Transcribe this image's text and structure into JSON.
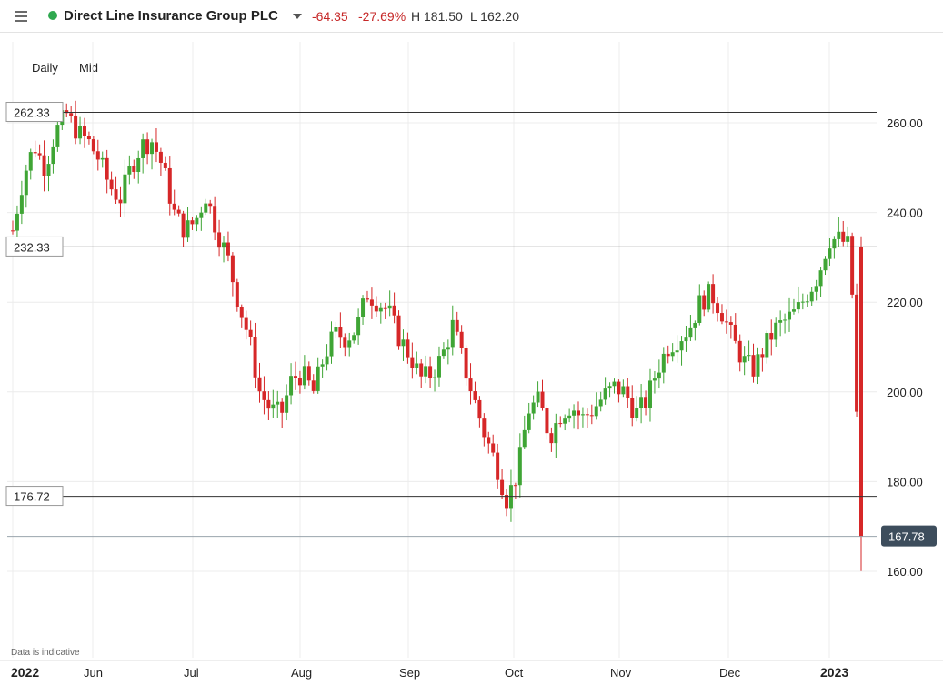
{
  "header": {
    "menu_icon": "hamburger-menu-icon",
    "instrument": "Direct Line Insurance Group PLC",
    "status_color": "#2fa84f",
    "change": "-64.35",
    "change_pct": "-27.69%",
    "high_label": "H 181.50",
    "low_label": "L 162.20"
  },
  "controls": {
    "interval": "Daily",
    "price_type": "Mid"
  },
  "disclaimer": "Data is indicative",
  "colors": {
    "up": "#3fa535",
    "down": "#d62728",
    "last_price_bg": "#3d4d5c"
  },
  "chart_data": {
    "type": "candlestick",
    "y_ticks": [
      "260.00",
      "240.00",
      "220.00",
      "200.00",
      "180.00",
      "160.00"
    ],
    "y_tick_values": [
      260,
      240,
      220,
      200,
      180,
      160
    ],
    "ylim": [
      140,
      282
    ],
    "x_ticks": [
      {
        "label": "2022",
        "bold": true
      },
      {
        "label": "Jun"
      },
      {
        "label": "Jul"
      },
      {
        "label": "Aug"
      },
      {
        "label": "Sep"
      },
      {
        "label": "Oct"
      },
      {
        "label": "Nov"
      },
      {
        "label": "Dec"
      },
      {
        "label": "2023",
        "bold": true
      }
    ],
    "horizontal_lines": [
      {
        "label": "262.33",
        "value": 262.33
      },
      {
        "label": "232.33",
        "value": 232.33
      },
      {
        "label": "176.72",
        "value": 176.72
      }
    ],
    "last_price": {
      "label": "167.78",
      "value": 167.78
    },
    "waypoints": [
      236,
      248,
      255,
      250,
      258,
      262,
      258,
      256,
      252,
      246,
      243,
      250,
      255,
      256,
      250,
      240,
      236,
      238,
      244,
      236,
      230,
      220,
      212,
      200,
      196,
      195,
      203,
      204,
      200,
      208,
      213,
      212,
      214,
      222,
      220,
      218,
      212,
      208,
      203,
      204,
      208,
      215,
      206,
      198,
      190,
      184,
      176,
      182,
      196,
      198,
      190,
      195,
      197,
      194,
      196,
      199,
      201,
      200,
      195,
      198,
      205,
      210,
      212,
      214,
      220,
      222,
      218,
      212,
      207,
      205,
      210,
      214,
      216,
      218,
      222,
      226,
      234,
      234,
      232.33,
      168
    ],
    "candle_count": 190
  }
}
